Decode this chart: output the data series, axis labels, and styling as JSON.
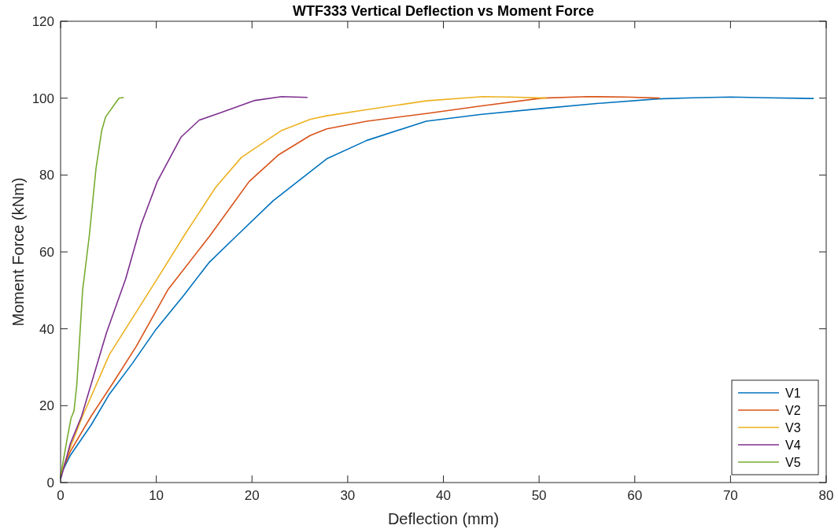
{
  "chart_data": {
    "type": "line",
    "title": "WTF333 Vertical Deflection vs Moment Force",
    "xlabel": "Deflection (mm)",
    "ylabel": "Moment Force (kNm)",
    "xlim": [
      0,
      80
    ],
    "xticks": [
      0,
      10,
      20,
      30,
      40,
      50,
      60,
      70,
      80
    ],
    "ylim": [
      0,
      120
    ],
    "yticks": [
      0,
      20,
      40,
      60,
      80,
      100,
      120
    ],
    "legend": "bottom right",
    "grid": false,
    "line_style": "solid",
    "marker": "none",
    "series": [
      {
        "name": "V1",
        "color": "#0072bd",
        "x": [
          0,
          1,
          3.2,
          5.1,
          7.5,
          9.9,
          12.9,
          15.5,
          18.4,
          22.2,
          27.8,
          32,
          38.2,
          44,
          50.3,
          56,
          62.4,
          66,
          70,
          74,
          78.7
        ],
        "values": [
          2,
          7,
          15,
          23,
          31,
          39.6,
          48.8,
          57.2,
          64.2,
          73.3,
          84.2,
          89,
          94,
          95.8,
          97.3,
          98.6,
          99.8,
          100.1,
          100.3,
          100.1,
          99.9
        ]
      },
      {
        "name": "V2",
        "color": "#d95319",
        "x": [
          0,
          1,
          3.2,
          5.5,
          7.9,
          11.2,
          15.6,
          19.7,
          22.8,
          26.1,
          27.8,
          32,
          38.2,
          44,
          50.3,
          55,
          59,
          62.6
        ],
        "values": [
          2,
          8,
          17.3,
          26,
          35.4,
          50.1,
          64.2,
          78.3,
          85.3,
          90.3,
          92,
          94,
          96,
          98,
          100,
          100.4,
          100.3,
          100
        ]
      },
      {
        "name": "V3",
        "color": "#edb120",
        "x": [
          0,
          1,
          2.3,
          5.1,
          10.1,
          12.9,
          16.2,
          18.9,
          23.1,
          26.1,
          27.8,
          32,
          38.2,
          44.1,
          47,
          50.8
        ],
        "values": [
          2,
          9,
          17.3,
          33.3,
          53,
          64.2,
          76.8,
          84.6,
          91.6,
          94.5,
          95.4,
          97,
          99.3,
          100.4,
          100.3,
          100
        ]
      },
      {
        "name": "V4",
        "color": "#7e2f8e",
        "x": [
          0,
          0.1,
          1,
          2.2,
          4.8,
          6.8,
          8.4,
          10.1,
          12.6,
          14.5,
          16.7,
          20.3,
          23.1,
          25.8
        ],
        "values": [
          1,
          1.7,
          10,
          17.3,
          39,
          53,
          67,
          78.3,
          89.9,
          94.3,
          96.2,
          99.4,
          100.4,
          100.2
        ]
      },
      {
        "name": "V5",
        "color": "#77ac30",
        "x": [
          0,
          0.7,
          1.1,
          1.4,
          1.7,
          2.3,
          3,
          3.7,
          4.3,
          4.7,
          6.1,
          6.6
        ],
        "values": [
          1.7,
          11.6,
          16.8,
          18.6,
          25.6,
          50,
          64.2,
          81.7,
          91.6,
          95.1,
          100,
          100.2
        ]
      }
    ]
  }
}
